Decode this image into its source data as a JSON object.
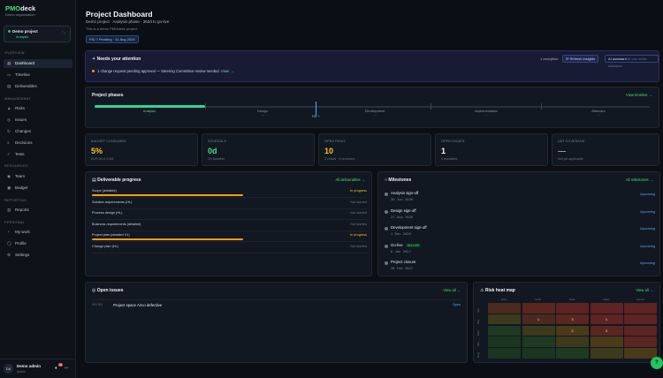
{
  "app": {
    "brand_a": "PMO",
    "brand_b": "deck",
    "org": "Demo organisation"
  },
  "project_switcher": {
    "name": "Demo project",
    "stage": "Analysis",
    "chevron": "⌃⌄"
  },
  "sidebar": {
    "sections": [
      "OVERVIEW",
      "MANAGEMENT",
      "RESOURCES",
      "REPORTING",
      "PERSONAL"
    ],
    "items": [
      {
        "label": "Dashboard",
        "icon": "dashboard-icon",
        "glyph": "▦"
      },
      {
        "label": "Timeline",
        "icon": "timeline-icon",
        "glyph": "▭"
      },
      {
        "label": "Deliverables",
        "icon": "deliverables-icon",
        "glyph": "▤"
      },
      {
        "label": "Risks",
        "icon": "risks-icon",
        "glyph": "▲"
      },
      {
        "label": "Issues",
        "icon": "issues-icon",
        "glyph": "◎"
      },
      {
        "label": "Changes",
        "icon": "changes-icon",
        "glyph": "↻"
      },
      {
        "label": "Decisions",
        "icon": "decisions-icon",
        "glyph": "≡"
      },
      {
        "label": "Tests",
        "icon": "tests-icon",
        "glyph": "✓"
      },
      {
        "label": "Team",
        "icon": "team-icon",
        "glyph": "◉"
      },
      {
        "label": "Budget",
        "icon": "budget-icon",
        "glyph": "▣"
      },
      {
        "label": "Reports",
        "icon": "reports-icon",
        "glyph": "▥"
      },
      {
        "label": "My work",
        "icon": "my-work-icon",
        "glyph": "◔"
      },
      {
        "label": "Profile",
        "icon": "profile-icon",
        "glyph": "◯"
      },
      {
        "label": "Settings",
        "icon": "settings-icon",
        "glyph": "⚙"
      }
    ]
  },
  "user": {
    "initials": "DA",
    "name": "Demo admin",
    "role": "Admin",
    "notifications": "9+"
  },
  "header": {
    "title": "Project Dashboard",
    "subtitle": "Demo project · Analysis phase · 363d to go-live",
    "note": "This is a demo PMOdeck project.",
    "fid_pill": "FID ? Pending · 31 Aug 2026"
  },
  "attention": {
    "title": "Needs your attention",
    "exceptions": "1 exception",
    "refresh": "Refresh insights",
    "ai_label": "AI assistant",
    "ai_hint": "AI can make mistakes",
    "message": "1 change request pending approval — Steering Committee review needed.",
    "view": "View →"
  },
  "phases": {
    "title": "Project phases",
    "link": "View timeline →",
    "today_label": "FID ?",
    "items": [
      {
        "name": "Analysis",
        "dash": "—"
      },
      {
        "name": "Design",
        "dash": "—"
      },
      {
        "name": "Development",
        "dash": "—"
      },
      {
        "name": "Implementation",
        "dash": "—"
      },
      {
        "name": "Aftercare",
        "dash": "—"
      }
    ]
  },
  "kpis": [
    {
      "label": "BUDGET CONSUMED",
      "value": "5%",
      "detail": "EUR 0k of 0.0M",
      "color": "#fbbf24"
    },
    {
      "label": "SCHEDULE",
      "value": "0d",
      "detail": "On baseline",
      "color": "#4ade80"
    },
    {
      "label": "OPEN RISKS",
      "value": "10",
      "detail": "3 critical · 0 unowned",
      "color": "#fbbf24"
    },
    {
      "label": "OPEN ISSUES",
      "value": "1",
      "detail": "0 escalated",
      "color": "#f1f5f9"
    },
    {
      "label": "UAT COVERAGE",
      "value": "—",
      "detail": "Not yet applicable",
      "color": "#94a3b8"
    }
  ],
  "deliverables": {
    "title": "Deliverable progress",
    "link": "All deliverables →",
    "rows": [
      {
        "name": "Scope (detailed)",
        "status": "In progress",
        "progress": 0.55
      },
      {
        "name": "Solution requirements (HL)",
        "status": "Not started",
        "progress": 0
      },
      {
        "name": "Process design (HL)",
        "status": "Not started",
        "progress": 0
      },
      {
        "name": "Business requirements (detailed)",
        "status": "Not started",
        "progress": 0
      },
      {
        "name": "Project plan (detailed V1)",
        "status": "In progress",
        "progress": 0.55
      },
      {
        "name": "Change plan (HL)",
        "status": "Not started",
        "progress": 0
      }
    ]
  },
  "milestones": {
    "title": "Milestones",
    "link": "All milestones →",
    "rows": [
      {
        "name": "Analysis sign-off",
        "date": "30 Jun 2026",
        "status": "Upcoming",
        "tag": ""
      },
      {
        "name": "Design sign-off",
        "date": "21 Aug 2026",
        "status": "Upcoming",
        "tag": ""
      },
      {
        "name": "Development sign-off",
        "date": "1 Dec 2026",
        "status": "Upcoming",
        "tag": ""
      },
      {
        "name": "Go-live",
        "date": "6 Jan 2027",
        "status": "Upcoming",
        "tag": "GO-LIVE"
      },
      {
        "name": "Project closure",
        "date": "28 Feb 2027",
        "status": "Upcoming",
        "tag": ""
      }
    ]
  },
  "issues": {
    "title": "Open issues",
    "link": "View all →",
    "rows": [
      {
        "key": "ISS-001",
        "name": "Project space Airco defective",
        "status": "Open"
      }
    ]
  },
  "risk_map": {
    "title": "Risk heat map",
    "link": "View all →",
    "columns": [
      "Rare",
      "Unlik.",
      "Poss.",
      "Likely",
      "Almost"
    ],
    "rows": [
      "Sev.",
      "Maj.",
      "Mod.",
      "Min.",
      "Neg."
    ],
    "counts": [
      [
        "",
        "",
        "",
        "",
        ""
      ],
      [
        "",
        "1",
        "3",
        "1",
        ""
      ],
      [
        "",
        "",
        "2",
        "3",
        ""
      ],
      [
        "",
        "",
        "",
        "",
        ""
      ],
      [
        "",
        "",
        "",
        "",
        ""
      ]
    ],
    "colors": [
      [
        "#4a2a1e",
        "#5a261f",
        "#5e2323",
        "#5e2323",
        "#5e2323"
      ],
      [
        "#3c3a1c",
        "#4a2a1e",
        "#5a261f",
        "#5e2323",
        "#5e2323"
      ],
      [
        "#1e3a22",
        "#3c3a1c",
        "#4a3a1a",
        "#5a261f",
        "#5e2323"
      ],
      [
        "#1a3620",
        "#1e3a22",
        "#3c3a1c",
        "#4a3a1a",
        "#5a261f"
      ],
      [
        "#1a3620",
        "#1a3620",
        "#1e3a22",
        "#3c3a1c",
        "#4a3a1a"
      ]
    ]
  },
  "help": "?"
}
